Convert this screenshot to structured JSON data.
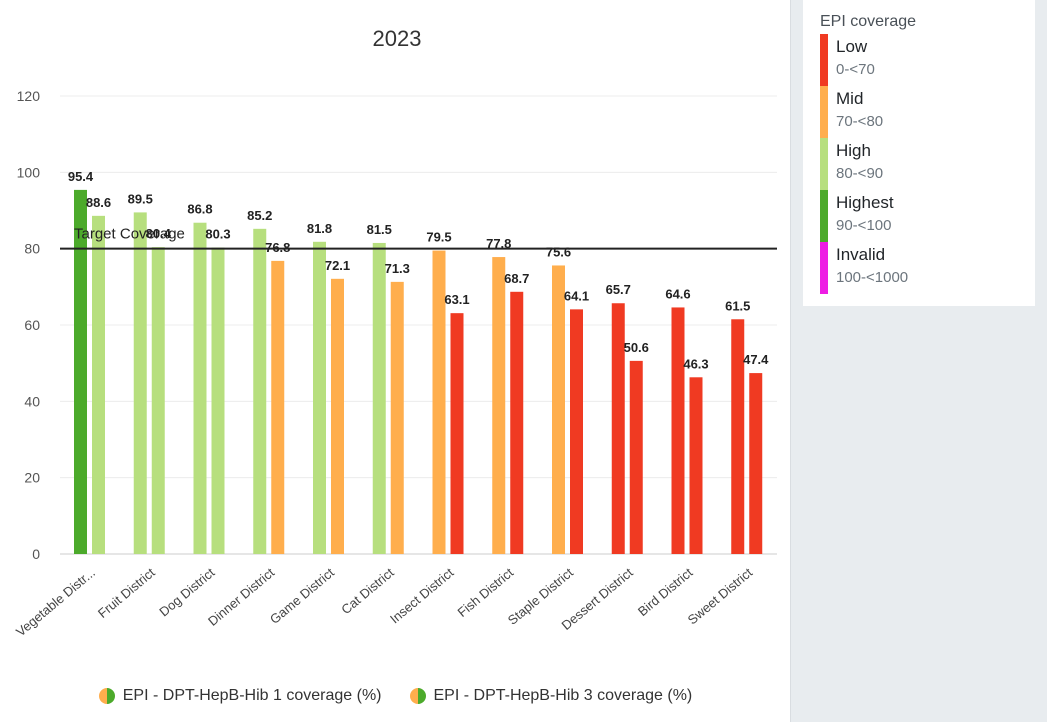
{
  "legend": {
    "title": "EPI coverage",
    "items": [
      {
        "name": "Low",
        "range": "0-<70",
        "color": "#f03a22"
      },
      {
        "name": "Mid",
        "range": "70-<80",
        "color": "#ffae4d"
      },
      {
        "name": "High",
        "range": "80-<90",
        "color": "#b7df7e"
      },
      {
        "name": "Highest",
        "range": "90-<100",
        "color": "#4caa2b"
      },
      {
        "name": "Invalid",
        "range": "100-<1000",
        "color": "#ee1ee4"
      }
    ]
  },
  "chart_data": {
    "type": "bar",
    "title": "2023",
    "categories": [
      "Vegetable Distr...",
      "Fruit District",
      "Dog District",
      "Dinner District",
      "Game District",
      "Cat District",
      "Insect District",
      "Fish District",
      "Staple District",
      "Dessert District",
      "Bird District",
      "Sweet District"
    ],
    "series": [
      {
        "name": "EPI - DPT-HepB-Hib 1 coverage (%)",
        "values": [
          95.4,
          89.5,
          86.8,
          85.2,
          81.8,
          81.5,
          79.5,
          77.8,
          75.6,
          65.7,
          64.6,
          61.5
        ]
      },
      {
        "name": "EPI - DPT-HepB-Hib 3 coverage (%)",
        "values": [
          88.6,
          80.4,
          80.3,
          76.8,
          72.1,
          71.3,
          63.1,
          68.7,
          64.1,
          50.6,
          46.3,
          47.4
        ]
      }
    ],
    "y_ticks": [
      0,
      20,
      40,
      60,
      80,
      100,
      120
    ],
    "ylim": [
      0,
      120
    ],
    "target": {
      "label": "Target Coverage",
      "value": 80
    },
    "grid": true,
    "legend_position": "bottom"
  }
}
